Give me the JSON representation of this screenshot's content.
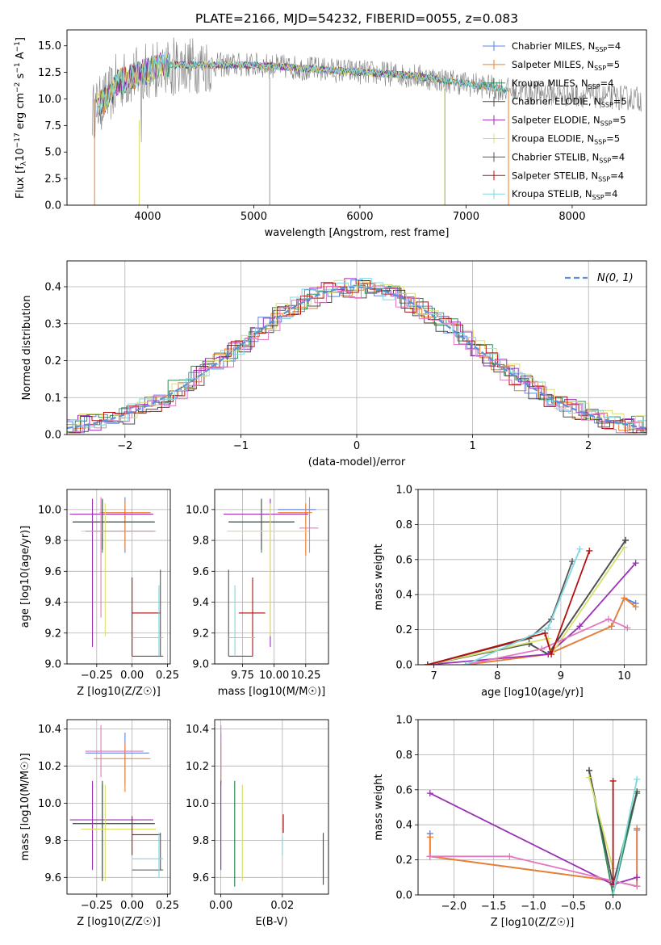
{
  "figure": {
    "title": "PLATE=2166, MJD=54232, FIBERID=0055, z=0.083",
    "colors": {
      "Chabrier MILES": "#5b84e0",
      "Salpeter MILES": "#f07f2c",
      "Kroupa MILES": "#2e8b57",
      "Chabrier ELODIE": "#4d4d4d",
      "Salpeter ELODIE": "#9c2fb5",
      "Kroupa ELODIE": "#d8e06a",
      "Chabrier STELIB": "#555555",
      "Salpeter STELIB": "#b30f0f",
      "Kroupa STELIB": "#7fd8e0",
      "Pink": "#e377c2",
      "Gaussian": "#5b8fd8"
    }
  },
  "chart_data": [
    {
      "id": "spectrum",
      "type": "line",
      "title": "PLATE=2166, MJD=54232, FIBERID=0055, z=0.083",
      "xlabel": "wavelength [Angstrom, rest frame]",
      "ylabel": "Flux [f_λ 10^-17 erg cm^-2 s^-1 A^-1]",
      "xlim": [
        3240,
        8700
      ],
      "ylim": [
        0,
        16.5
      ],
      "xticks": [
        4000,
        5000,
        6000,
        7000,
        8000
      ],
      "yticks": [
        0.0,
        2.5,
        5.0,
        7.5,
        10.0,
        12.5,
        15.0
      ],
      "legend_position": "right",
      "legend": [
        "Chabrier MILES, N_SSP=4",
        "Salpeter MILES, N_SSP=5",
        "Kroupa MILES, N_SSP=4",
        "Chabrier ELODIE, N_SSP=5",
        "Salpeter ELODIE, N_SSP=5",
        "Kroupa ELODIE, N_SSP=5",
        "Chabrier STELIB, N_SSP=4",
        "Salpeter STELIB, N_SSP=4",
        "Kroupa STELIB, N_SSP=4"
      ],
      "grid": false
    },
    {
      "id": "residuals",
      "type": "line",
      "xlabel": "(data-model)/error",
      "ylabel": "Normed distribution",
      "xlim": [
        -2.5,
        2.5
      ],
      "ylim": [
        0,
        0.47
      ],
      "xticks": [
        -2,
        -1,
        0,
        1,
        2
      ],
      "yticks": [
        0.0,
        0.1,
        0.2,
        0.3,
        0.4
      ],
      "legend": [
        "N(0,1)"
      ],
      "legend_position": "top-right",
      "gaussian_peak": 0.399,
      "grid": true
    },
    {
      "id": "age-vs-Z",
      "type": "scatter",
      "xlabel": "Z [log10(Z/Z☉)]",
      "ylabel": "age [log10(age/yr)]",
      "xlim": [
        -0.46,
        0.27
      ],
      "ylim": [
        9.0,
        10.13
      ],
      "xticks": [
        -0.25,
        0.0,
        0.25
      ],
      "yticks": [
        9.0,
        9.2,
        9.4,
        9.6,
        9.8,
        10.0
      ],
      "grid": true
    },
    {
      "id": "age-vs-mass",
      "type": "scatter",
      "xlabel": "mass [log10(M/M☉)]",
      "ylabel": "",
      "xlim": [
        9.53,
        10.43
      ],
      "ylim": [
        9.0,
        10.13
      ],
      "xticks": [
        9.75,
        10.0,
        10.25
      ],
      "yticks": [
        9.0,
        9.2,
        9.4,
        9.6,
        9.8,
        10.0
      ],
      "grid": true
    },
    {
      "id": "massweight-vs-age",
      "type": "line",
      "xlabel": "age [log10(age/yr)]",
      "ylabel": "mass weight",
      "xlim": [
        6.75,
        10.35
      ],
      "ylim": [
        0,
        1.0
      ],
      "xticks": [
        7,
        8,
        9,
        10
      ],
      "yticks": [
        0.0,
        0.2,
        0.4,
        0.6,
        0.8,
        1.0
      ],
      "grid": true
    },
    {
      "id": "mass-vs-Z",
      "type": "scatter",
      "xlabel": "Z [log10(Z/Z☉)]",
      "ylabel": "mass [log10(M/M☉)]",
      "xlim": [
        -0.46,
        0.27
      ],
      "ylim": [
        9.51,
        10.45
      ],
      "xticks": [
        -0.25,
        0.0,
        0.25
      ],
      "yticks": [
        9.6,
        9.8,
        10.0,
        10.2,
        10.4
      ],
      "grid": true
    },
    {
      "id": "mass-vs-ebv",
      "type": "scatter",
      "xlabel": "E(B-V)",
      "ylabel": "",
      "xlim": [
        -0.002,
        0.035
      ],
      "ylim": [
        9.51,
        10.45
      ],
      "xticks": [
        0.0,
        0.02
      ],
      "yticks": [
        9.6,
        9.8,
        10.0,
        10.2,
        10.4
      ],
      "grid": true
    },
    {
      "id": "massweight-vs-Z",
      "type": "line",
      "xlabel": "Z [log10(Z/Z☉)]",
      "ylabel": "mass weight",
      "xlim": [
        -2.45,
        0.42
      ],
      "ylim": [
        0,
        1.0
      ],
      "xticks": [
        -2.0,
        -1.5,
        -1.0,
        -0.5,
        0.0
      ],
      "yticks": [
        0.0,
        0.2,
        0.4,
        0.6,
        0.8,
        1.0
      ],
      "grid": true
    }
  ],
  "series": {
    "hist_offsets": [
      0.012,
      -0.01,
      0.018,
      -0.016,
      0.006,
      0.022,
      -0.004,
      0.014,
      -0.02
    ],
    "age_Z_cross": [
      {
        "c": "Chabrier MILES",
        "x": -0.05,
        "y": 9.97,
        "xe": [
          -0.23,
          0.13
        ],
        "ye": [
          9.72,
          10.08
        ]
      },
      {
        "c": "Salpeter MILES",
        "x": -0.05,
        "y": 9.98,
        "xe": [
          -0.23,
          0.13
        ],
        "ye": [
          9.74,
          10.06
        ]
      },
      {
        "c": "Kroupa MILES",
        "x": -0.21,
        "y": 9.92,
        "xe": [
          -0.42,
          0.16
        ],
        "ye": [
          9.72,
          10.06
        ]
      },
      {
        "c": "Chabrier ELODIE",
        "x": -0.21,
        "y": 9.92,
        "xe": [
          -0.42,
          0.16
        ],
        "ye": [
          9.74,
          10.07
        ]
      },
      {
        "c": "Salpeter ELODIE",
        "x": -0.28,
        "y": 9.97,
        "xe": [
          -0.44,
          0.15
        ],
        "ye": [
          9.11,
          10.07
        ]
      },
      {
        "c": "Kroupa ELODIE",
        "x": -0.19,
        "y": 9.86,
        "xe": [
          -0.36,
          0.17
        ],
        "ye": [
          9.18,
          10.04
        ]
      },
      {
        "c": "Pink",
        "x": -0.22,
        "y": 9.86,
        "xe": [
          -0.33,
          0.16
        ],
        "ye": [
          9.3,
          10.08
        ]
      },
      {
        "c": "Chabrier STELIB",
        "x": 0.2,
        "y": 9.05,
        "xe": [
          0.0,
          0.22
        ],
        "ye": [
          9.05,
          9.61
        ]
      },
      {
        "c": "Salpeter STELIB",
        "x": 0.0,
        "y": 9.33,
        "xe": [
          0.0,
          0.2
        ],
        "ye": [
          9.05,
          9.56
        ]
      },
      {
        "c": "Kroupa STELIB",
        "x": 0.19,
        "y": 9.17,
        "xe": [
          0.0,
          0.22
        ],
        "ye": [
          9.05,
          9.51
        ]
      }
    ],
    "age_mass_cross": [
      {
        "c": "Chabrier MILES",
        "x": 10.28,
        "y": 10.0,
        "xe": [
          10.03,
          10.33
        ],
        "ye": [
          9.9,
          10.04
        ]
      },
      {
        "c": "Salpeter MILES",
        "x": 10.25,
        "y": 9.98,
        "xe": [
          10.03,
          10.3
        ],
        "ye": [
          9.7,
          10.04
        ]
      },
      {
        "c": "Kroupa MILES",
        "x": 9.9,
        "y": 9.92,
        "xe": [
          9.64,
          10.16
        ],
        "ye": [
          9.72,
          10.06
        ]
      },
      {
        "c": "Chabrier ELODIE",
        "x": 9.9,
        "y": 9.92,
        "xe": [
          9.64,
          10.16
        ],
        "ye": [
          9.74,
          10.07
        ]
      },
      {
        "c": "Salpeter ELODIE",
        "x": 9.97,
        "y": 9.97,
        "xe": [
          9.6,
          10.27
        ],
        "ye": [
          9.11,
          10.07
        ]
      },
      {
        "c": "Kroupa ELODIE",
        "x": 9.97,
        "y": 9.86,
        "xe": [
          9.63,
          10.28
        ],
        "ye": [
          9.18,
          10.04
        ]
      },
      {
        "c": "Pink",
        "x": 10.28,
        "y": 9.88,
        "xe": [
          10.2,
          10.35
        ],
        "ye": [
          9.72,
          10.08
        ]
      },
      {
        "c": "Chabrier STELIB",
        "x": 9.64,
        "y": 9.05,
        "xe": [
          9.64,
          9.83
        ],
        "ye": [
          9.05,
          9.61
        ]
      },
      {
        "c": "Salpeter STELIB",
        "x": 9.83,
        "y": 9.33,
        "xe": [
          9.72,
          9.93
        ],
        "ye": [
          9.05,
          9.56
        ]
      },
      {
        "c": "Kroupa STELIB",
        "x": 9.69,
        "y": 9.17,
        "xe": [
          9.64,
          9.85
        ],
        "ye": [
          9.05,
          9.51
        ]
      }
    ],
    "mass_Z_cross": [
      {
        "c": "Chabrier MILES",
        "x": -0.05,
        "y": 10.27,
        "xe": [
          -0.33,
          0.12
        ],
        "ye": [
          10.1,
          10.38
        ]
      },
      {
        "c": "Salpeter MILES",
        "x": -0.05,
        "y": 10.24,
        "xe": [
          -0.27,
          0.13
        ],
        "ye": [
          10.06,
          10.33
        ]
      },
      {
        "c": "Kroupa MILES",
        "x": -0.21,
        "y": 9.89,
        "xe": [
          -0.42,
          0.16
        ],
        "ye": [
          9.6,
          10.1
        ]
      },
      {
        "c": "Chabrier ELODIE",
        "x": -0.21,
        "y": 9.89,
        "xe": [
          -0.42,
          0.16
        ],
        "ye": [
          9.58,
          10.12
        ]
      },
      {
        "c": "Salpeter ELODIE",
        "x": -0.28,
        "y": 9.91,
        "xe": [
          -0.44,
          0.15
        ],
        "ye": [
          9.64,
          10.12
        ]
      },
      {
        "c": "Kroupa ELODIE",
        "x": -0.19,
        "y": 9.86,
        "xe": [
          -0.36,
          0.17
        ],
        "ye": [
          9.58,
          10.1
        ]
      },
      {
        "c": "Pink",
        "x": -0.22,
        "y": 10.28,
        "xe": [
          -0.33,
          0.08
        ],
        "ye": [
          10.14,
          10.42
        ]
      },
      {
        "c": "Chabrier STELIB",
        "x": 0.2,
        "y": 9.64,
        "xe": [
          0.0,
          0.22
        ],
        "ye": [
          9.64,
          9.84
        ]
      },
      {
        "c": "Salpeter STELIB",
        "x": 0.0,
        "y": 9.83,
        "xe": [
          0.0,
          0.2
        ],
        "ye": [
          9.72,
          9.93
        ]
      },
      {
        "c": "Kroupa STELIB",
        "x": 0.19,
        "y": 9.7,
        "xe": [
          0.0,
          0.22
        ],
        "ye": [
          9.6,
          9.84
        ]
      }
    ],
    "mass_ebv_bars": [
      {
        "c": "Chabrier MILES",
        "x": 0.0,
        "y0": 10.1,
        "y1": 10.38
      },
      {
        "c": "Salpeter MILES",
        "x": 0.0,
        "y0": 10.1,
        "y1": 10.33
      },
      {
        "c": "Pink",
        "x": 0.0,
        "y0": 10.14,
        "y1": 10.42
      },
      {
        "c": "Salpeter ELODIE",
        "x": 0.0,
        "y0": 9.64,
        "y1": 10.12
      },
      {
        "c": "Kroupa MILES",
        "x": 0.0045,
        "y0": 9.55,
        "y1": 10.12
      },
      {
        "c": "Kroupa ELODIE",
        "x": 0.007,
        "y0": 9.58,
        "y1": 10.1
      },
      {
        "c": "Salpeter STELIB",
        "x": 0.0203,
        "y0": 9.84,
        "y1": 9.94
      },
      {
        "c": "Kroupa STELIB",
        "x": 0.02,
        "y0": 9.72,
        "y1": 9.82
      },
      {
        "c": "Chabrier STELIB",
        "x": 0.0333,
        "y0": 9.56,
        "y1": 9.84
      }
    ],
    "mw_age": [
      {
        "c": "Chabrier MILES",
        "pts": [
          [
            7.5,
            0.0
          ],
          [
            8.8,
            0.06
          ],
          [
            9.8,
            0.22
          ],
          [
            10.0,
            0.38
          ],
          [
            10.18,
            0.35
          ]
        ]
      },
      {
        "c": "Salpeter MILES",
        "pts": [
          [
            7.5,
            0.0
          ],
          [
            8.8,
            0.06
          ],
          [
            9.8,
            0.22
          ],
          [
            10.0,
            0.38
          ],
          [
            10.18,
            0.33
          ]
        ]
      },
      {
        "c": "Kroupa MILES",
        "pts": [
          [
            6.9,
            0.0
          ],
          [
            8.5,
            0.12
          ],
          [
            8.8,
            0.06
          ],
          [
            10.02,
            0.71
          ]
        ]
      },
      {
        "c": "Chabrier ELODIE",
        "pts": [
          [
            6.9,
            0.0
          ],
          [
            8.5,
            0.12
          ],
          [
            8.8,
            0.06
          ],
          [
            10.02,
            0.71
          ]
        ]
      },
      {
        "c": "Salpeter ELODIE",
        "pts": [
          [
            6.9,
            0.0
          ],
          [
            8.8,
            0.06
          ],
          [
            9.3,
            0.22
          ],
          [
            10.18,
            0.58
          ]
        ]
      },
      {
        "c": "Kroupa ELODIE",
        "pts": [
          [
            6.9,
            0.0
          ],
          [
            8.8,
            0.15
          ],
          [
            8.85,
            0.06
          ],
          [
            10.0,
            0.67
          ]
        ]
      },
      {
        "c": "Pink",
        "pts": [
          [
            7.5,
            0.0
          ],
          [
            8.7,
            0.09
          ],
          [
            9.75,
            0.26
          ],
          [
            10.05,
            0.21
          ]
        ]
      },
      {
        "c": "Chabrier STELIB",
        "pts": [
          [
            6.9,
            0.0
          ],
          [
            8.5,
            0.15
          ],
          [
            8.85,
            0.26
          ],
          [
            9.18,
            0.59
          ]
        ]
      },
      {
        "c": "Salpeter STELIB",
        "pts": [
          [
            6.9,
            0.0
          ],
          [
            8.75,
            0.18
          ],
          [
            8.85,
            0.06
          ],
          [
            9.45,
            0.65
          ]
        ]
      },
      {
        "c": "Kroupa STELIB",
        "pts": [
          [
            7.5,
            0.0
          ],
          [
            8.8,
            0.21
          ],
          [
            9.3,
            0.66
          ]
        ]
      }
    ],
    "mw_Z": [
      {
        "c": "Chabrier MILES",
        "pts": [
          [
            -2.3,
            0.35
          ],
          [
            -2.3,
            0.22
          ],
          [
            0.0,
            0.08
          ],
          [
            0.3,
            0.05
          ],
          [
            0.3,
            0.37
          ]
        ]
      },
      {
        "c": "Salpeter MILES",
        "pts": [
          [
            -2.3,
            0.33
          ],
          [
            -2.3,
            0.22
          ],
          [
            0.0,
            0.08
          ],
          [
            0.3,
            0.05
          ],
          [
            0.3,
            0.38
          ]
        ]
      },
      {
        "c": "Kroupa MILES",
        "pts": [
          [
            -0.3,
            0.71
          ],
          [
            0.0,
            0.0
          ],
          [
            0.3,
            0.58
          ]
        ]
      },
      {
        "c": "Chabrier ELODIE",
        "pts": [
          [
            -0.3,
            0.71
          ],
          [
            0.0,
            0.06
          ],
          [
            0.3,
            0.59
          ]
        ]
      },
      {
        "c": "Salpeter ELODIE",
        "pts": [
          [
            -2.3,
            0.58
          ],
          [
            0.0,
            0.06
          ],
          [
            0.3,
            0.1
          ]
        ]
      },
      {
        "c": "Kroupa ELODIE",
        "pts": [
          [
            -0.3,
            0.67
          ],
          [
            0.0,
            0.15
          ]
        ]
      },
      {
        "c": "Pink",
        "pts": [
          [
            -2.3,
            0.22
          ],
          [
            -1.3,
            0.22
          ],
          [
            0.0,
            0.08
          ],
          [
            0.3,
            0.05
          ]
        ]
      },
      {
        "c": "Salpeter STELIB",
        "pts": [
          [
            0.0,
            0.65
          ],
          [
            0.0,
            0.06
          ]
        ]
      },
      {
        "c": "Kroupa STELIB",
        "pts": [
          [
            0.3,
            0.66
          ],
          [
            0.0,
            0.0
          ]
        ]
      }
    ]
  }
}
